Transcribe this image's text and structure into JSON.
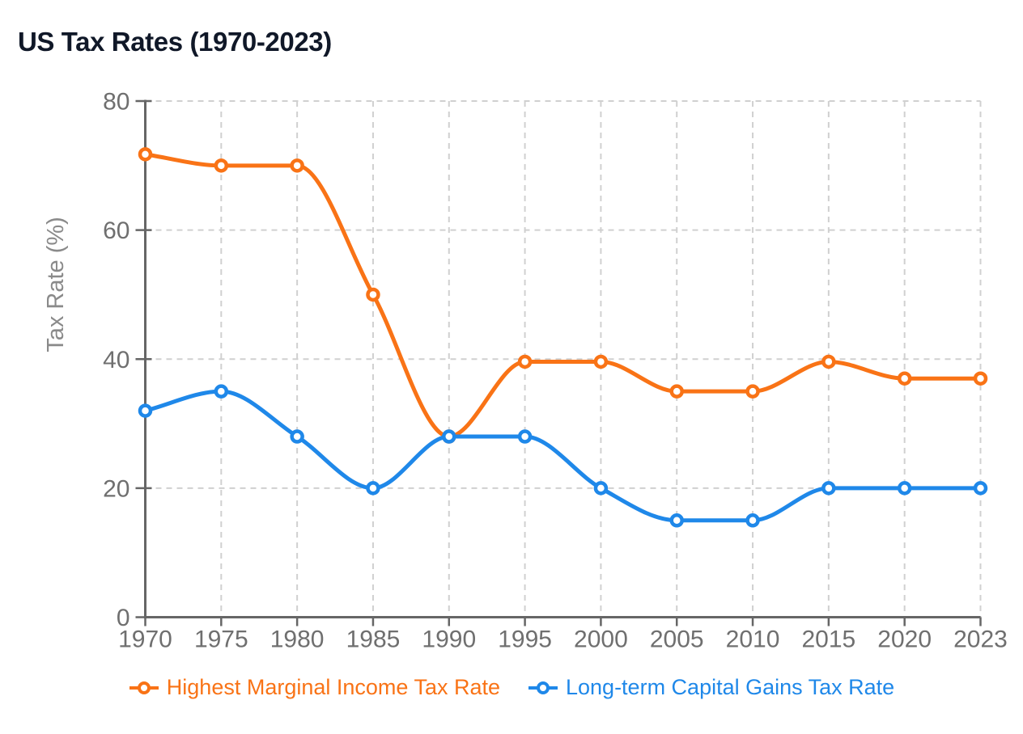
{
  "title": "US Tax Rates (1970-2023)",
  "chart_data": {
    "type": "line",
    "categories": [
      "1970",
      "1975",
      "1980",
      "1985",
      "1990",
      "1995",
      "2000",
      "2005",
      "2010",
      "2015",
      "2020",
      "2023"
    ],
    "series": [
      {
        "name": "Highest Marginal Income Tax Rate",
        "color": "#F97316",
        "values": [
          71.75,
          70,
          70,
          50,
          28,
          39.6,
          39.6,
          35,
          35,
          39.6,
          37,
          37
        ]
      },
      {
        "name": "Long-term Capital Gains Tax Rate",
        "color": "#1F88E9",
        "values": [
          32,
          35,
          28,
          20,
          28,
          28,
          20,
          15,
          15,
          20,
          20,
          20
        ]
      }
    ],
    "ylabel": "Tax Rate (%)",
    "xlabel": "",
    "ylim": [
      0,
      80
    ],
    "yticks": [
      0,
      20,
      40,
      60,
      80
    ],
    "grid": true,
    "grid_style": "dashed",
    "line_smoothing": "monotone",
    "legend_position": "bottom"
  },
  "style": {
    "title_color": "#101828",
    "axis_color": "#666666",
    "grid_color": "#D0D0D0",
    "tick_label_color": "#6F6F6F",
    "axis_label_color": "#8A8A8A",
    "marker_fill": "#FFFFFF",
    "background": "#FFFFFF"
  }
}
